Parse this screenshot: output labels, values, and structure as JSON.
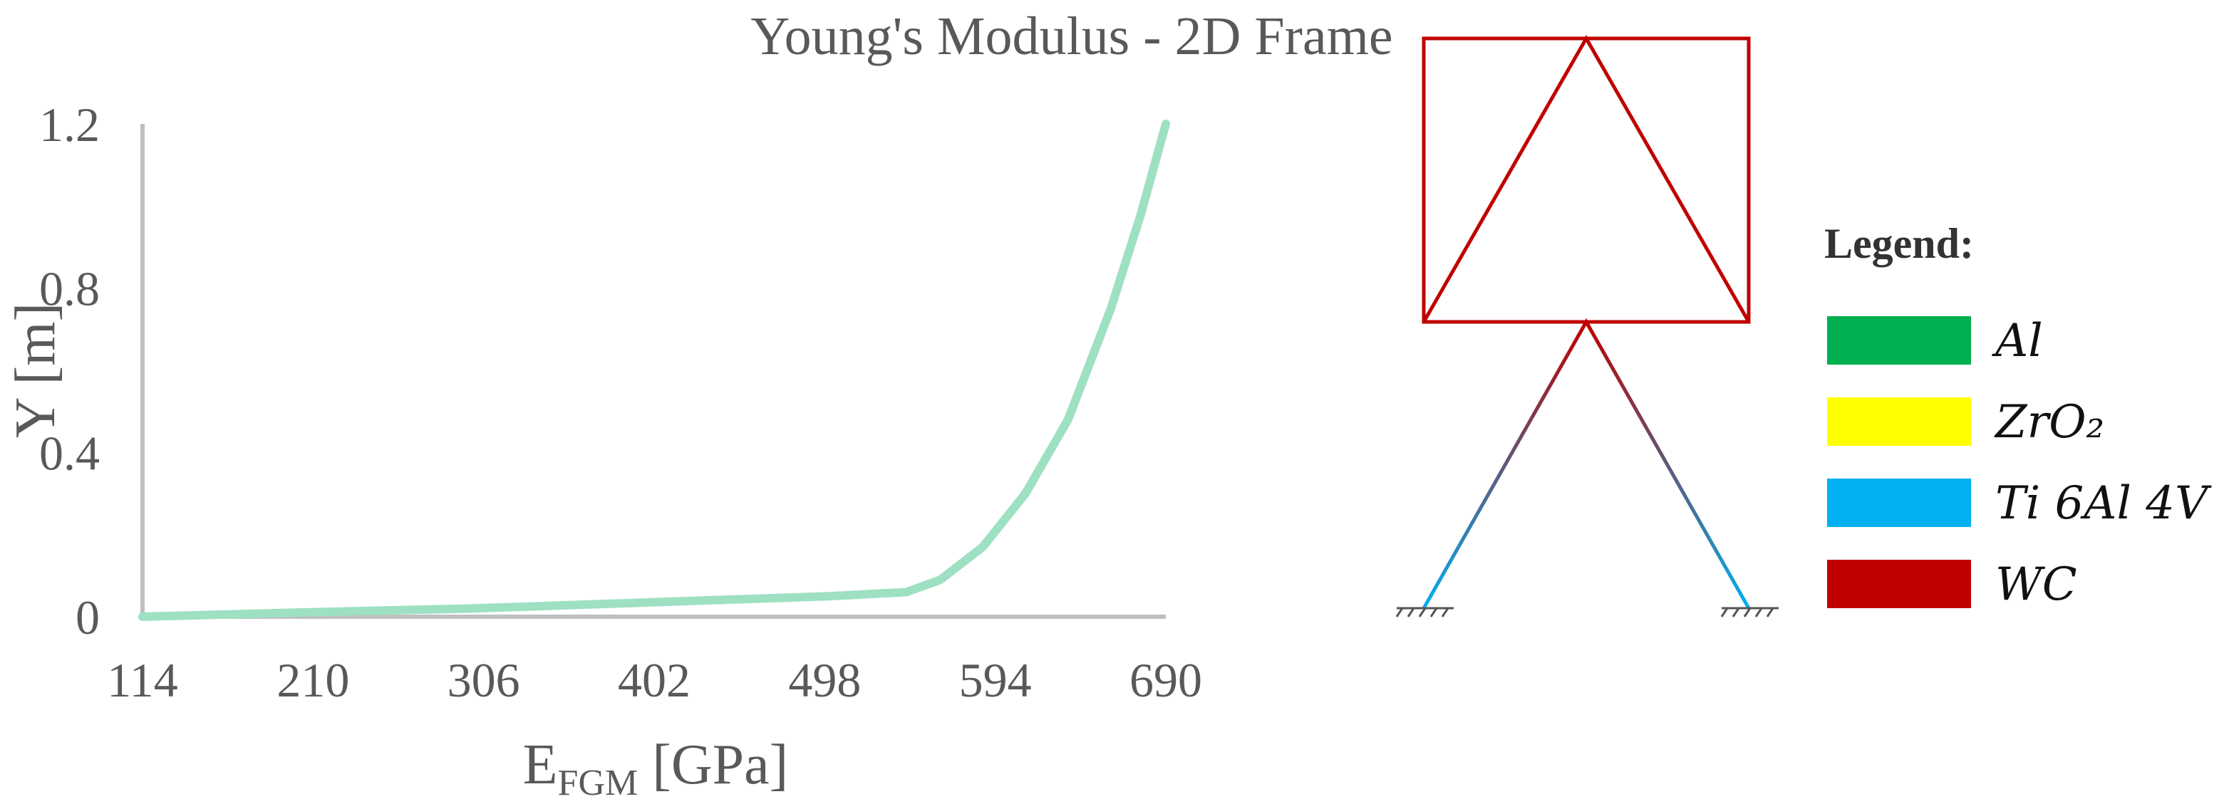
{
  "chart_data": {
    "type": "line",
    "title": "Young's Modulus - 2D Frame",
    "x_label": {
      "base": "E",
      "subscript": "FGM",
      "rest": "[GPa]"
    },
    "y_label": "Y [m]",
    "x": [
      114,
      200,
      300,
      400,
      500,
      544,
      563,
      587,
      611,
      635,
      659,
      676,
      690
    ],
    "values": [
      0,
      0.01,
      0.02,
      0.035,
      0.05,
      0.06,
      0.09,
      0.17,
      0.3,
      0.48,
      0.75,
      0.98,
      1.2
    ],
    "color": "#9ee0c2",
    "xlim": [
      114,
      690
    ],
    "xticks": [
      114,
      210,
      306,
      402,
      498,
      594,
      690
    ],
    "ylim": [
      0,
      1.2
    ],
    "yticks": [
      0,
      0.4,
      0.8,
      1.2
    ]
  },
  "frame_legend": {
    "title": "Legend:",
    "items": [
      {
        "label": "Al",
        "color": "#00b050"
      },
      {
        "label": "ZrO₂",
        "color": "#ffff00"
      },
      {
        "label": "Ti 6Al 4V",
        "color": "#00b0f0"
      },
      {
        "label": "WC",
        "color": "#c00000"
      }
    ]
  }
}
